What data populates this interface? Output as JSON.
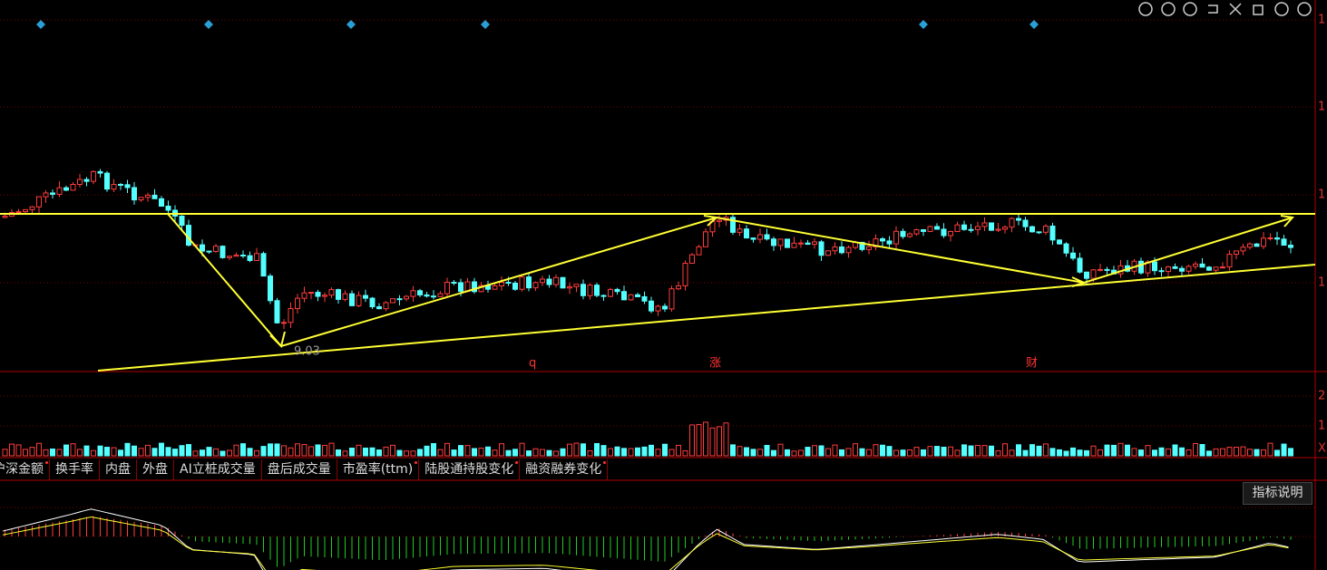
{
  "main_panel": {
    "axis_labels": [
      "1",
      "1",
      "1",
      "1"
    ],
    "low_label": "9.03",
    "markers": [
      "q",
      "涨",
      "财"
    ]
  },
  "volume_panel": {
    "axis_labels": [
      "2",
      "1",
      "X"
    ]
  },
  "tabs": [
    "沪深金额",
    "换手率",
    "内盘",
    "外盘",
    "AI立桩成交量",
    "盘后成交量",
    "市盈率(ttm)",
    "陆股通持股变化",
    "融资融券变化"
  ],
  "button": "指标说明"
}
